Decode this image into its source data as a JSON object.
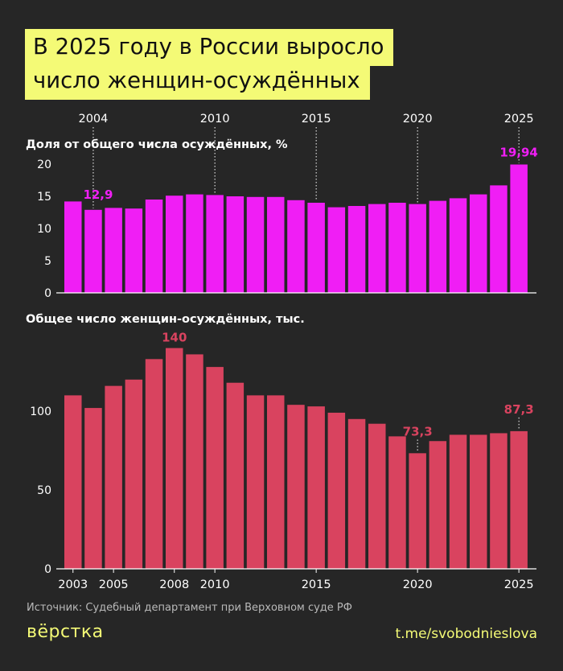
{
  "title": {
    "line1": "В 2025 году в России выросло",
    "line2": "число женщин-осуждённых"
  },
  "colors": {
    "background": "#262626",
    "accent_yellow": "#f4fa76",
    "share_bars": "#f01ef5",
    "count_bars": "#d9435f"
  },
  "chart_data": [
    {
      "type": "bar",
      "title": "Доля от общего числа осуждённых, %",
      "categories": [
        "2003",
        "2004",
        "2005",
        "2006",
        "2007",
        "2008",
        "2009",
        "2010",
        "2011",
        "2012",
        "2013",
        "2014",
        "2015",
        "2016",
        "2017",
        "2018",
        "2019",
        "2020",
        "2021",
        "2022",
        "2023",
        "2024",
        "2025"
      ],
      "values": [
        14.2,
        12.9,
        13.2,
        13.1,
        14.5,
        15.1,
        15.3,
        15.2,
        15.0,
        14.9,
        14.9,
        14.4,
        14.0,
        13.3,
        13.5,
        13.8,
        14.0,
        13.8,
        14.3,
        14.7,
        15.3,
        16.7,
        19.94
      ],
      "ylim": [
        0,
        20
      ],
      "yticks": [
        "0",
        "5",
        "10",
        "15",
        "20"
      ],
      "top_axis_labels": [
        "2004",
        "2010",
        "2015",
        "2020",
        "2025"
      ],
      "annotations": [
        {
          "category": "2004",
          "text": "12,9"
        },
        {
          "category": "2025",
          "text": "19,94"
        }
      ]
    },
    {
      "type": "bar",
      "title": "Общее число женщин-осуждённых, тыс.",
      "categories": [
        "2003",
        "2004",
        "2005",
        "2006",
        "2007",
        "2008",
        "2009",
        "2010",
        "2011",
        "2012",
        "2013",
        "2014",
        "2015",
        "2016",
        "2017",
        "2018",
        "2019",
        "2020",
        "2021",
        "2022",
        "2023",
        "2024",
        "2025"
      ],
      "values": [
        110,
        102,
        116,
        120,
        133,
        140,
        136,
        128,
        118,
        110,
        110,
        104,
        103,
        99,
        95,
        92,
        84,
        73.3,
        81,
        85,
        85,
        86,
        87.3
      ],
      "ylim": [
        0,
        140
      ],
      "yticks": [
        "0",
        "50",
        "100"
      ],
      "x_axis_labels": [
        "2003",
        "2005",
        "2008",
        "2010",
        "2015",
        "2020",
        "2025"
      ],
      "annotations": [
        {
          "category": "2008",
          "text": "140"
        },
        {
          "category": "2020",
          "text": "73,3"
        },
        {
          "category": "2025",
          "text": "87,3"
        }
      ]
    }
  ],
  "footer": {
    "source": "Источник: Судебный департамент при Верховном суде РФ",
    "logo": "вёрстка",
    "channel": "t.me/svobodnieslova"
  }
}
